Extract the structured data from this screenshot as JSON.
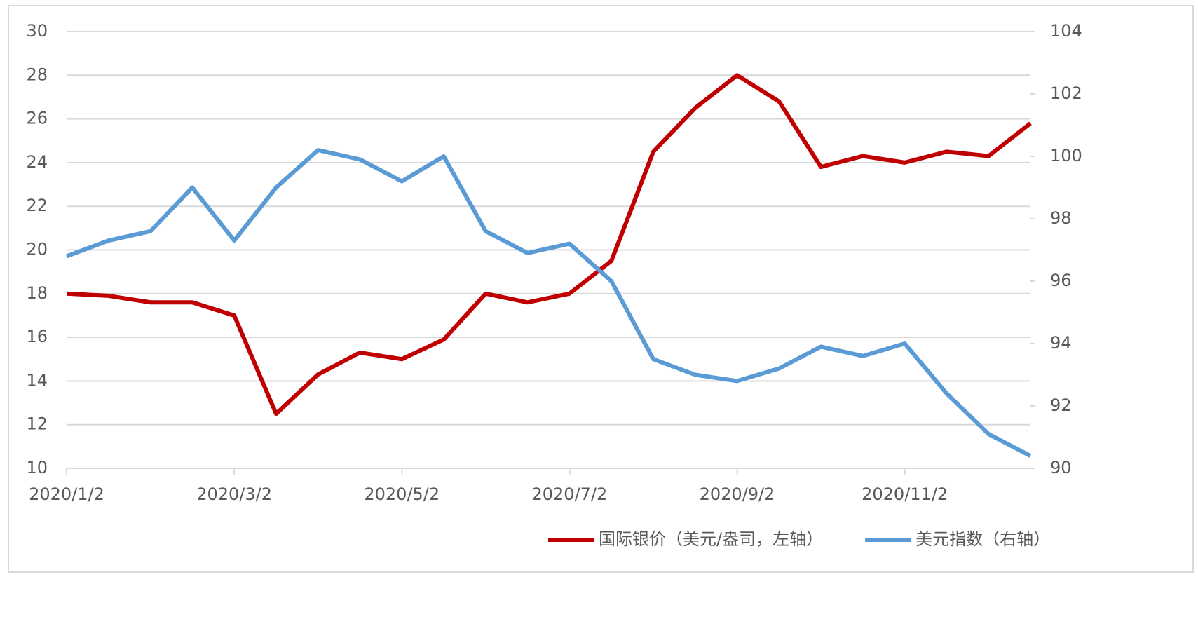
{
  "chart_data": {
    "type": "line",
    "categories": [
      "2020/1/2",
      null,
      null,
      null,
      "2020/3/2",
      null,
      null,
      null,
      "2020/5/2",
      null,
      null,
      null,
      "2020/7/2",
      null,
      null,
      null,
      "2020/9/2",
      null,
      null,
      null,
      "2020/11/2",
      null,
      null,
      null
    ],
    "series": [
      {
        "name": "国际银价（美元/盎司，左轴）",
        "color": "#c00000",
        "axis": "y",
        "values": [
          18.0,
          17.9,
          17.6,
          17.6,
          17.0,
          12.5,
          14.3,
          15.3,
          15.0,
          15.9,
          18.0,
          17.6,
          18.0,
          19.5,
          24.5,
          26.5,
          28.0,
          26.8,
          23.8,
          24.3,
          24.0,
          24.5,
          24.3,
          25.8
        ]
      },
      {
        "name": "美元指数（右轴）",
        "color": "#5b9bd5",
        "axis": "y2",
        "values": [
          96.8,
          97.3,
          97.6,
          99.0,
          97.3,
          99.0,
          100.2,
          99.9,
          99.2,
          100.0,
          97.6,
          96.9,
          97.2,
          96.0,
          93.5,
          93.0,
          92.8,
          93.2,
          93.9,
          93.6,
          94.0,
          92.4,
          91.1,
          90.4
        ]
      }
    ],
    "ylim": [
      10,
      30
    ],
    "yticks": [
      10,
      12,
      14,
      16,
      18,
      20,
      22,
      24,
      26,
      28,
      30
    ],
    "y2lim": [
      90,
      104
    ],
    "y2ticks": [
      90,
      92,
      94,
      96,
      98,
      100,
      102,
      104
    ],
    "grid": true,
    "legend": "bottom"
  }
}
